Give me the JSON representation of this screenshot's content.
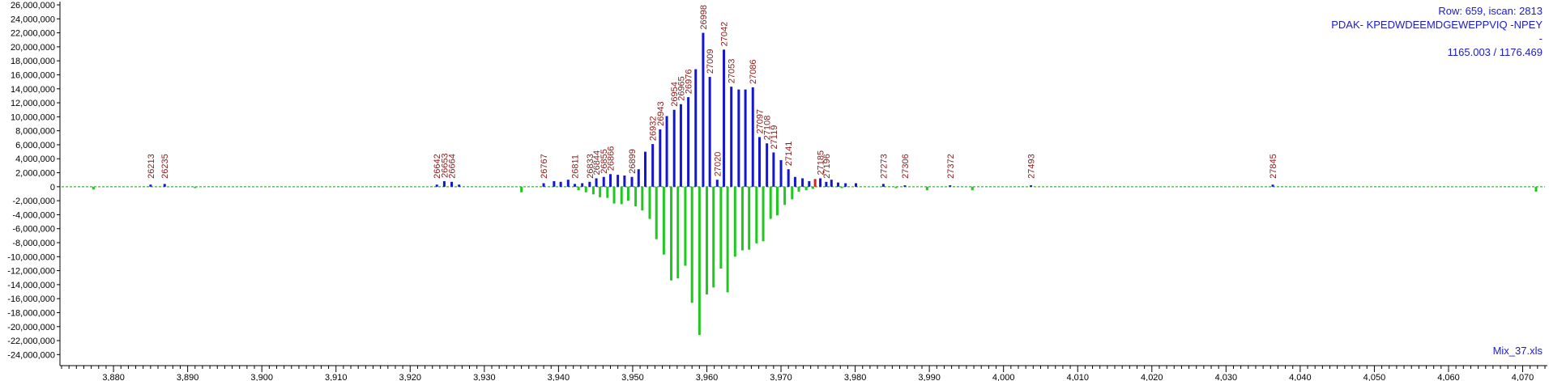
{
  "info": {
    "row_scan": "Row: 659, iscan: 2813",
    "peptide": "PDAK- KPEDWDEEMDGEWEPPVIQ -NPEY",
    "dash": "-",
    "mz": "1165.003 / 1176.469",
    "file": "Mix_37.xls"
  },
  "colors": {
    "observed": "#1515d5",
    "theoretical": "#1ec81e",
    "highlight": "#e02020",
    "label": "#8b1a1a",
    "baseline": "#1a9a1a"
  },
  "chart_data": {
    "type": "bar",
    "xlim": [
      3873,
      4073
    ],
    "ylim": [
      -25000000,
      26000000
    ],
    "x_ticks": [
      3880,
      3890,
      3900,
      3910,
      3920,
      3930,
      3940,
      3950,
      3960,
      3970,
      3980,
      3990,
      4000,
      4010,
      4020,
      4030,
      4040,
      4050,
      4060,
      4070
    ],
    "x_tick_labels": [
      "3,880",
      "3,890",
      "3,900",
      "3,910",
      "3,920",
      "3,930",
      "3,940",
      "3,950",
      "3,960",
      "3,970",
      "3,980",
      "3,990",
      "4,000",
      "4,010",
      "4,020",
      "4,030",
      "4,040",
      "4,050",
      "4,060",
      "4,070"
    ],
    "y_ticks": [
      26000000,
      24000000,
      22000000,
      20000000,
      18000000,
      16000000,
      14000000,
      12000000,
      10000000,
      8000000,
      6000000,
      4000000,
      2000000,
      0,
      -2000000,
      -4000000,
      -6000000,
      -8000000,
      -10000000,
      -12000000,
      -14000000,
      -16000000,
      -18000000,
      -20000000,
      -22000000,
      -24000000
    ],
    "y_tick_labels": [
      "26,000,000",
      "24,000,000",
      "22,000,000",
      "20,000,000",
      "18,000,000",
      "16,000,000",
      "14,000,000",
      "12,000,000",
      "10,000,000",
      "8,000,000",
      "6,000,000",
      "4,000,000",
      "2,000,000",
      "0",
      "-2,000,000",
      "-4,000,000",
      "-6,000,000",
      "-8,000,000",
      "-10,000,000",
      "-12,000,000",
      "-14,000,000",
      "-16,000,000",
      "-18,000,000",
      "-20,000,000",
      "-22,000,000",
      "-24,000,000"
    ],
    "series": [
      {
        "x": [
          3885.0,
          3886.9,
          3923.6,
          3924.6,
          3925.6,
          3926.6,
          3938.0,
          3939.4,
          3940.3,
          3941.3,
          3942.2,
          3943.2,
          3944.2,
          3945.1,
          3946.1,
          3947.0,
          3948.0,
          3948.9,
          3949.9,
          3950.8,
          3951.7,
          3952.7,
          3953.7,
          3954.6,
          3955.6,
          3956.5,
          3957.5,
          3958.5,
          3959.5,
          3960.4,
          3961.4,
          3962.3,
          3963.3,
          3964.3,
          3965.2,
          3966.2,
          3967.1,
          3968.1,
          3969.0,
          3970.0,
          3971.0,
          3971.9,
          3972.9,
          3973.8,
          3975.3,
          3976.1,
          3976.8,
          3977.7,
          3978.7,
          3980.1,
          3983.8,
          3986.7,
          3992.8,
          4003.7,
          4036.3
        ],
        "values": [
          300000,
          400000,
          300000,
          800000,
          700000,
          300000,
          500000,
          800000,
          700000,
          1000000,
          400000,
          500000,
          700000,
          1200000,
          1400000,
          1800000,
          1700000,
          1600000,
          1400000,
          2500000,
          5000000,
          6100000,
          8200000,
          10100000,
          11000000,
          11800000,
          12800000,
          16800000,
          22000000,
          15700000,
          1000000,
          19600000,
          14300000,
          13900000,
          13900000,
          14200000,
          7100000,
          6200000,
          4900000,
          3800000,
          2500000,
          1400000,
          1200000,
          800000,
          1200000,
          700000,
          1000000,
          600000,
          500000,
          500000,
          400000,
          200000,
          200000,
          200000,
          300000
        ]
      },
      {
        "x": [
          3877.3,
          3891.0,
          3935.0,
          3942.7,
          3943.7,
          3944.7,
          3945.6,
          3946.6,
          3947.5,
          3948.5,
          3949.4,
          3950.4,
          3951.3,
          3952.3,
          3953.2,
          3954.2,
          3955.2,
          3956.1,
          3957.1,
          3958.0,
          3959.0,
          3960.0,
          3960.9,
          3961.9,
          3962.8,
          3963.8,
          3964.8,
          3965.7,
          3966.7,
          3967.6,
          3968.6,
          3969.5,
          3970.5,
          3971.5,
          3972.4,
          3973.4,
          3974.3,
          3978.2,
          3985.5,
          3989.7,
          3995.8,
          4071.8
        ],
        "values": [
          -400000,
          -200000,
          -800000,
          -500000,
          -800000,
          -1100000,
          -1500000,
          -1600000,
          -2400000,
          -2500000,
          -2000000,
          -2800000,
          -3400000,
          -4600000,
          -7500000,
          -9700000,
          -13400000,
          -13100000,
          -11300000,
          -16600000,
          -21200000,
          -15400000,
          -14400000,
          -11700000,
          -15100000,
          -10000000,
          -9100000,
          -9000000,
          -8100000,
          -7800000,
          -4600000,
          -4100000,
          -2600000,
          -1800000,
          -700000,
          -500000,
          -300000,
          -200000,
          -200000,
          -500000,
          -500000,
          -700000
        ]
      },
      {
        "x": [
          3974.6
        ],
        "values": [
          1100000
        ]
      }
    ],
    "annotations": [
      {
        "text": "26213",
        "x": 3885.0
      },
      {
        "text": "26235",
        "x": 3886.9
      },
      {
        "text": "26642",
        "x": 3923.6
      },
      {
        "text": "26653",
        "x": 3924.6
      },
      {
        "text": "26664",
        "x": 3925.6
      },
      {
        "text": "26767",
        "x": 3938.0
      },
      {
        "text": "26811",
        "x": 3942.2
      },
      {
        "text": "26833",
        "x": 3944.2
      },
      {
        "text": "26844",
        "x": 3945.1
      },
      {
        "text": "26855",
        "x": 3946.1
      },
      {
        "text": "26866",
        "x": 3947.0
      },
      {
        "text": "26899",
        "x": 3949.9
      },
      {
        "text": "26932",
        "x": 3952.7
      },
      {
        "text": "26943",
        "x": 3953.7
      },
      {
        "text": "26954",
        "x": 3955.6
      },
      {
        "text": "26965",
        "x": 3956.5
      },
      {
        "text": "26976",
        "x": 3957.5
      },
      {
        "text": "26998",
        "x": 3959.5
      },
      {
        "text": "27009",
        "x": 3960.4
      },
      {
        "text": "27020",
        "x": 3961.4
      },
      {
        "text": "27042",
        "x": 3962.3
      },
      {
        "text": "27053",
        "x": 3963.3
      },
      {
        "text": "27086",
        "x": 3966.2
      },
      {
        "text": "27097",
        "x": 3967.1
      },
      {
        "text": "27108",
        "x": 3968.1
      },
      {
        "text": "27119",
        "x": 3969.0
      },
      {
        "text": "27141",
        "x": 3971.0
      },
      {
        "text": "27185",
        "x": 3975.3
      },
      {
        "text": "27196",
        "x": 3976.1
      },
      {
        "text": "27273",
        "x": 3983.8
      },
      {
        "text": "27306",
        "x": 3986.7
      },
      {
        "text": "27372",
        "x": 3992.8
      },
      {
        "text": "27493",
        "x": 4003.7
      },
      {
        "text": "27845",
        "x": 4036.3
      }
    ],
    "grid": false,
    "legend": "none"
  }
}
